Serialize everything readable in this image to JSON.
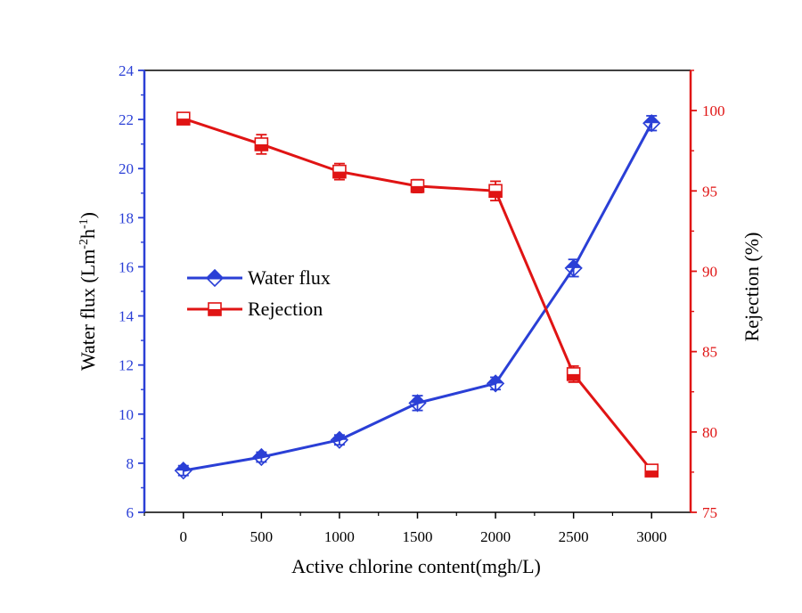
{
  "chart_data": {
    "type": "line",
    "x": [
      0,
      500,
      1000,
      1500,
      2000,
      2500,
      3000
    ],
    "xlabel": "Active chlorine content(mgh/L)",
    "xlim": [
      -250,
      3250
    ],
    "x_ticks": [
      0,
      500,
      1000,
      1500,
      2000,
      2500,
      3000
    ],
    "grid": false,
    "legend_position": "left-middle",
    "y_left": {
      "label_main": "Water flux (Lm",
      "label_sup1": "-2",
      "label_mid": "h",
      "label_sup2": "-1",
      "label_end": ")",
      "lim": [
        6,
        24
      ],
      "ticks": [
        6,
        8,
        10,
        12,
        14,
        16,
        18,
        20,
        22,
        24
      ],
      "color": "#2a3fd6"
    },
    "y_right": {
      "label": "Rejection (%)",
      "lim": [
        75,
        102.5
      ],
      "ticks": [
        75,
        80,
        85,
        90,
        95,
        100
      ],
      "color": "#e01414"
    },
    "series": [
      {
        "name": "Water flux",
        "axis": "left",
        "marker": "half-filled-diamond",
        "color": "#2a3fd6",
        "values": [
          7.7,
          8.25,
          8.95,
          10.45,
          11.25,
          15.95,
          21.85
        ],
        "errors": [
          0.2,
          0.2,
          0.2,
          0.3,
          0.25,
          0.35,
          0.3
        ]
      },
      {
        "name": "Rejection",
        "axis": "right",
        "marker": "half-filled-square",
        "color": "#e01414",
        "values": [
          99.5,
          97.9,
          96.2,
          95.3,
          95.0,
          83.6,
          77.6
        ],
        "errors": [
          0.3,
          0.6,
          0.5,
          0.4,
          0.6,
          0.5,
          0.3
        ]
      }
    ]
  }
}
